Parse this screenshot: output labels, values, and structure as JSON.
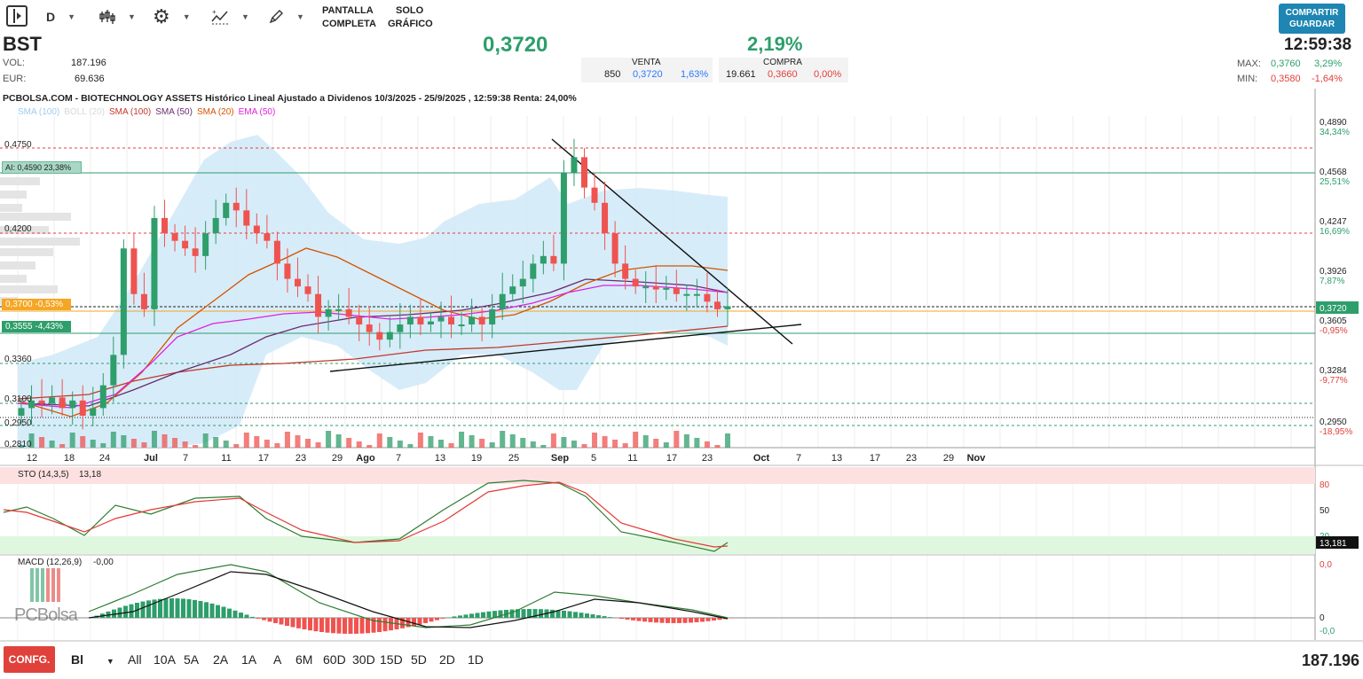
{
  "toolbar": {
    "period": "D",
    "fullscreen_label_1": "PANTALLA",
    "fullscreen_label_2": "COMPLETA",
    "chart_only_label_1": "SOLO",
    "chart_only_label_2": "GRÁFICO",
    "share_label_1": "COMPARTIR",
    "share_label_2": "GUARDAR"
  },
  "quote": {
    "ticker": "BST",
    "vol_label": "VOL:",
    "vol_value": "187.196",
    "eur_label": "EUR:",
    "eur_value": "69.636",
    "price": "0,3720",
    "change": "2,19%",
    "time": "12:59:38",
    "venta_label": "VENTA",
    "venta_qty": "850",
    "venta_price": "0,3720",
    "venta_pct": "1,63%",
    "compra_label": "COMPRA",
    "compra_qty": "19.661",
    "compra_price": "0,3660",
    "compra_pct": "0,00%",
    "max_label": "MAX:",
    "max_value": "0,3760",
    "max_pct": "3,29%",
    "min_label": "MIN:",
    "min_value": "0,3580",
    "min_pct": "-1,64%"
  },
  "chart": {
    "title": "PCBOLSA.COM - BIOTECHNOLOGY ASSETS Histórico Lineal Ajustado a Dividenos 10/3/2025 - 25/9/2025 , 12:59:38 Renta: 24,00%",
    "legend": [
      {
        "label": "SMA (100)",
        "color": "#9ecbf0"
      },
      {
        "label": "BOLL (20)",
        "color": "#d8d8d8"
      },
      {
        "label": "SMA (100)",
        "color": "#c0392b"
      },
      {
        "label": "SMA (50)",
        "color": "#6a2c70"
      },
      {
        "label": "SMA (20)",
        "color": "#d35400"
      },
      {
        "label": "EMA (50)",
        "color": "#e020e0"
      }
    ],
    "left_levels": [
      "0,4750",
      "0,4200",
      "0,3360",
      "0,3100",
      "0,2950",
      "0,2810"
    ],
    "tag_ai": "AI: 0,4590  23,38%",
    "tag_orange": "0,3700  -0,53%",
    "tag_green": "0,3555  -4,43%",
    "right_axis": [
      {
        "price": "0,4890",
        "pct": "34,34%",
        "pct_color": "#2e9e6b"
      },
      {
        "price": "0,4568",
        "pct": "25,51%",
        "pct_color": "#2e9e6b"
      },
      {
        "price": "0,4247",
        "pct": "16,69%",
        "pct_color": "#2e9e6b"
      },
      {
        "price": "0,3926",
        "pct": "7,87%",
        "pct_color": "#2e9e6b"
      },
      {
        "price": "0,3605",
        "pct": "-0,95%",
        "pct_color": "#e0413b"
      },
      {
        "price": "0,3284",
        "pct": "-9,77%",
        "pct_color": "#e0413b"
      },
      {
        "price": "0,2950",
        "pct": "-18,95%",
        "pct_color": "#e0413b"
      }
    ],
    "last_price_tag": "0,3720",
    "x_labels": [
      "12",
      "18",
      "24",
      "Jul",
      "7",
      "11",
      "17",
      "23",
      "29",
      "Ago",
      "7",
      "13",
      "19",
      "25",
      "Sep",
      "5",
      "11",
      "17",
      "23",
      "Oct",
      "7",
      "13",
      "17",
      "23",
      "29",
      "Nov"
    ],
    "sto_label": "STO (14,3,5)",
    "sto_value": "13,18",
    "sto_axis": [
      "80",
      "50",
      "20"
    ],
    "sto_tag": "13,181",
    "macd_label": "MACD (12,26,9)",
    "macd_value": "-0,00",
    "macd_axis_top": "0,0",
    "macd_axis_zero": "0",
    "macd_axis_bottom": "-0,0",
    "watermark": "PCBolsa"
  },
  "chart_data": {
    "type": "candlestick",
    "title": "PCBOLSA.COM - BIOTECHNOLOGY ASSETS Histórico Lineal Ajustado a Dividenos 10/3/2025 - 25/9/2025 , 12:59:38 Renta: 24,00%",
    "ylim": [
      0.279,
      0.497
    ],
    "last": 0.372,
    "close_series": [
      0.305,
      0.31,
      0.308,
      0.312,
      0.305,
      0.31,
      0.3,
      0.305,
      0.32,
      0.34,
      0.41,
      0.38,
      0.37,
      0.43,
      0.42,
      0.415,
      0.41,
      0.405,
      0.42,
      0.43,
      0.44,
      0.435,
      0.425,
      0.42,
      0.415,
      0.4,
      0.39,
      0.385,
      0.38,
      0.365,
      0.37,
      0.37,
      0.365,
      0.36,
      0.355,
      0.35,
      0.355,
      0.36,
      0.365,
      0.36,
      0.362,
      0.365,
      0.36,
      0.36,
      0.365,
      0.36,
      0.37,
      0.38,
      0.385,
      0.39,
      0.4,
      0.405,
      0.4,
      0.46,
      0.47,
      0.45,
      0.44,
      0.42,
      0.4,
      0.39,
      0.385,
      0.385,
      0.383,
      0.384,
      0.38,
      0.38,
      0.38,
      0.375,
      0.37,
      0.372
    ]
  },
  "footer": {
    "config_label": "CONFG.",
    "mode": "Bl",
    "timeframes": [
      "All",
      "10A",
      "5A",
      "2A",
      "1A",
      "A",
      "6M",
      "60D",
      "30D",
      "15D",
      "5D",
      "2D",
      "1D"
    ],
    "volume_total": "187.196"
  }
}
